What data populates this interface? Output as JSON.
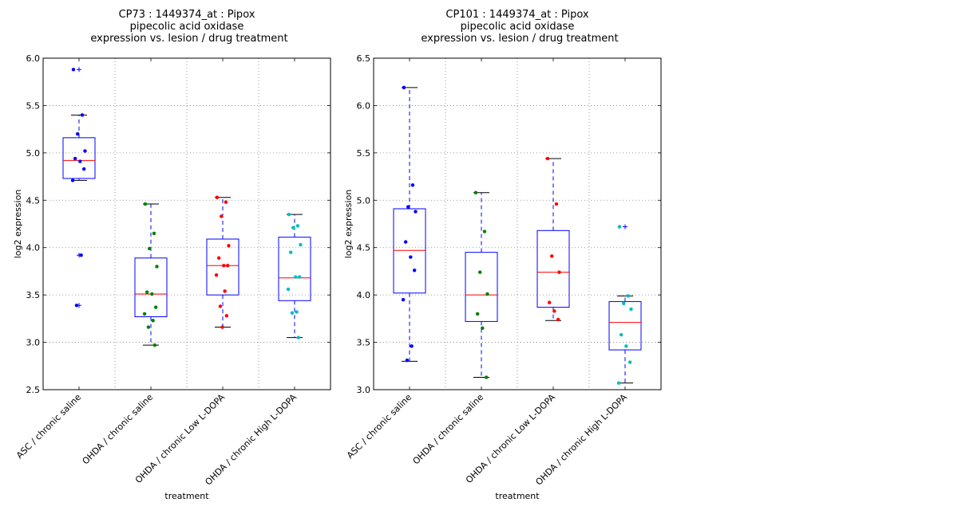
{
  "chart_data": [
    {
      "type": "boxplot",
      "title_lines": [
        "CP73 : 1449374_at : Pipox",
        "pipecolic acid oxidase",
        "expression vs. lesion / drug treatment"
      ],
      "xlabel": "treatment",
      "ylabel": "log2 expression",
      "ylim": [
        2.5,
        6.0
      ],
      "yticks": [
        "2.5",
        "3.0",
        "3.5",
        "4.0",
        "4.5",
        "5.0",
        "5.5",
        "6.0"
      ],
      "grid": true,
      "categories": [
        "ASC / chronic saline",
        "OHDA / chronic saline",
        "OHDA / chronic Low L-DOPA",
        "OHDA / chronic High L-DOPA"
      ],
      "colors": [
        "#0000ff",
        "#008000",
        "#ff0000",
        "#00bfbf"
      ],
      "boxes": [
        {
          "q1": 4.73,
          "median": 4.92,
          "q3": 5.16,
          "whisker_low": 4.71,
          "whisker_high": 5.4,
          "outliers": [
            5.88,
            3.92,
            3.39
          ]
        },
        {
          "q1": 3.27,
          "median": 3.51,
          "q3": 3.89,
          "whisker_low": 2.97,
          "whisker_high": 4.46,
          "outliers": []
        },
        {
          "q1": 3.5,
          "median": 3.81,
          "q3": 4.09,
          "whisker_low": 3.16,
          "whisker_high": 4.53,
          "outliers": []
        },
        {
          "q1": 3.44,
          "median": 3.68,
          "q3": 4.11,
          "whisker_low": 3.05,
          "whisker_high": 4.35,
          "outliers": []
        }
      ],
      "points": [
        [
          5.88,
          5.4,
          5.2,
          5.02,
          4.94,
          4.91,
          4.83,
          4.71,
          3.92,
          3.39
        ],
        [
          4.46,
          4.15,
          3.99,
          3.8,
          3.53,
          3.51,
          3.37,
          3.3,
          3.23,
          3.16,
          2.97
        ],
        [
          4.53,
          4.48,
          4.33,
          4.02,
          3.89,
          3.81,
          3.81,
          3.71,
          3.54,
          3.38,
          3.28,
          3.16
        ],
        [
          4.35,
          4.23,
          4.21,
          4.03,
          3.95,
          3.69,
          3.69,
          3.56,
          3.32,
          3.31,
          3.05
        ]
      ]
    },
    {
      "type": "boxplot",
      "title_lines": [
        "CP101 : 1449374_at : Pipox",
        "pipecolic acid oxidase",
        "expression vs. lesion / drug treatment"
      ],
      "xlabel": "treatment",
      "ylabel": "log2 expression",
      "ylim": [
        3.0,
        6.5
      ],
      "yticks": [
        "3.0",
        "3.5",
        "4.0",
        "4.5",
        "5.0",
        "5.5",
        "6.0",
        "6.5"
      ],
      "grid": true,
      "categories": [
        "ASC / chronic saline",
        "OHDA / chronic saline",
        "OHDA / chronic Low L-DOPA",
        "OHDA / chronic High L-DOPA"
      ],
      "colors": [
        "#0000ff",
        "#008000",
        "#ff0000",
        "#00bfbf"
      ],
      "boxes": [
        {
          "q1": 4.02,
          "median": 4.47,
          "q3": 4.91,
          "whisker_low": 3.3,
          "whisker_high": 6.19,
          "outliers": []
        },
        {
          "q1": 3.72,
          "median": 4.0,
          "q3": 4.45,
          "whisker_low": 3.13,
          "whisker_high": 5.08,
          "outliers": []
        },
        {
          "q1": 3.87,
          "median": 4.24,
          "q3": 4.68,
          "whisker_low": 3.73,
          "whisker_high": 5.44,
          "outliers": []
        },
        {
          "q1": 3.42,
          "median": 3.71,
          "q3": 3.93,
          "whisker_low": 3.07,
          "whisker_high": 3.99,
          "outliers": [
            4.72
          ]
        }
      ],
      "points": [
        [
          6.19,
          5.16,
          4.93,
          4.88,
          4.56,
          4.4,
          4.26,
          3.95,
          3.46,
          3.31
        ],
        [
          5.08,
          4.67,
          4.24,
          4.01,
          3.8,
          3.65,
          3.13
        ],
        [
          5.44,
          4.96,
          4.41,
          4.24,
          3.92,
          3.83,
          3.74
        ],
        [
          4.72,
          3.99,
          3.91,
          3.85,
          3.58,
          3.46,
          3.29,
          3.07
        ]
      ]
    }
  ]
}
